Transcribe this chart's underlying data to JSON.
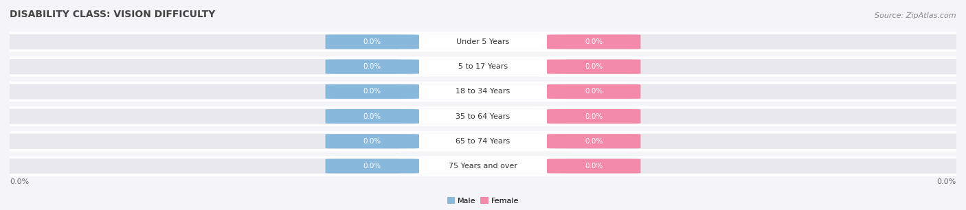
{
  "title": "DISABILITY CLASS: VISION DIFFICULTY",
  "source_text": "Source: ZipAtlas.com",
  "categories": [
    "Under 5 Years",
    "5 to 17 Years",
    "18 to 34 Years",
    "35 to 64 Years",
    "65 to 74 Years",
    "75 Years and over"
  ],
  "male_values": [
    0.0,
    0.0,
    0.0,
    0.0,
    0.0,
    0.0
  ],
  "female_values": [
    0.0,
    0.0,
    0.0,
    0.0,
    0.0,
    0.0
  ],
  "male_color": "#88b8dc",
  "female_color": "#f48aaa",
  "row_bg_color": "#e8e8ee",
  "center_box_color": "#ffffff",
  "title_color": "#444444",
  "source_color": "#888888",
  "label_value_color": "#ffffff",
  "center_label_color": "#333333",
  "axis_label_color": "#666666",
  "bg_color": "#f5f5f8",
  "separator_color": "#ffffff",
  "title_fontsize": 10,
  "source_fontsize": 8,
  "category_fontsize": 8,
  "value_fontsize": 7.5,
  "axis_fontsize": 8,
  "legend_fontsize": 8
}
